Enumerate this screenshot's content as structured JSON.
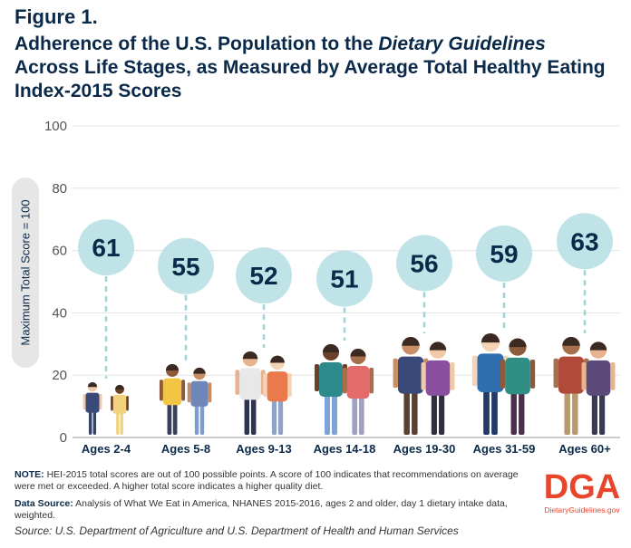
{
  "figure_label": "Figure 1.",
  "title_part1": "Adherence of the U.S. Population to the ",
  "title_italic": "Dietary Guidelines",
  "title_part2": " Across Life Stages, as Measured by Average Total Healthy Eating Index-2015 Scores",
  "chart_data": {
    "type": "bar",
    "categories": [
      "Ages 2-4",
      "Ages 5-8",
      "Ages 9-13",
      "Ages 14-18",
      "Ages 19-30",
      "Ages 31-59",
      "Ages 60+"
    ],
    "values": [
      61,
      55,
      52,
      51,
      56,
      59,
      63
    ],
    "ylabel": "Maximum Total Score = 100",
    "ylim": [
      0,
      100
    ],
    "yticks": [
      0,
      20,
      40,
      60,
      80,
      100
    ],
    "grid": true,
    "colors": {
      "bubble": "#bfe3e6",
      "stem": "#9fd3d8",
      "value_text": "#0b2a4a",
      "axis_text": "#555555"
    }
  },
  "notes": {
    "note_label": "NOTE:",
    "note_text": " HEI-2015 total scores are out of 100 possible points. A score of 100 indicates that recommendations on average were met or exceeded. A higher total score indicates a higher quality diet.",
    "source_label": "Data Source:",
    "source_text": " Analysis of What We Eat in America, NHANES 2015-2016, ages 2 and older, day 1 dietary intake data, weighted."
  },
  "source_line": "Source: U.S. Department of Agriculture and U.S. Department of Health and Human Services",
  "logo": {
    "mark": "DGA",
    "url_text": "DietaryGuidelines.gov",
    "color": "#e8452c"
  }
}
